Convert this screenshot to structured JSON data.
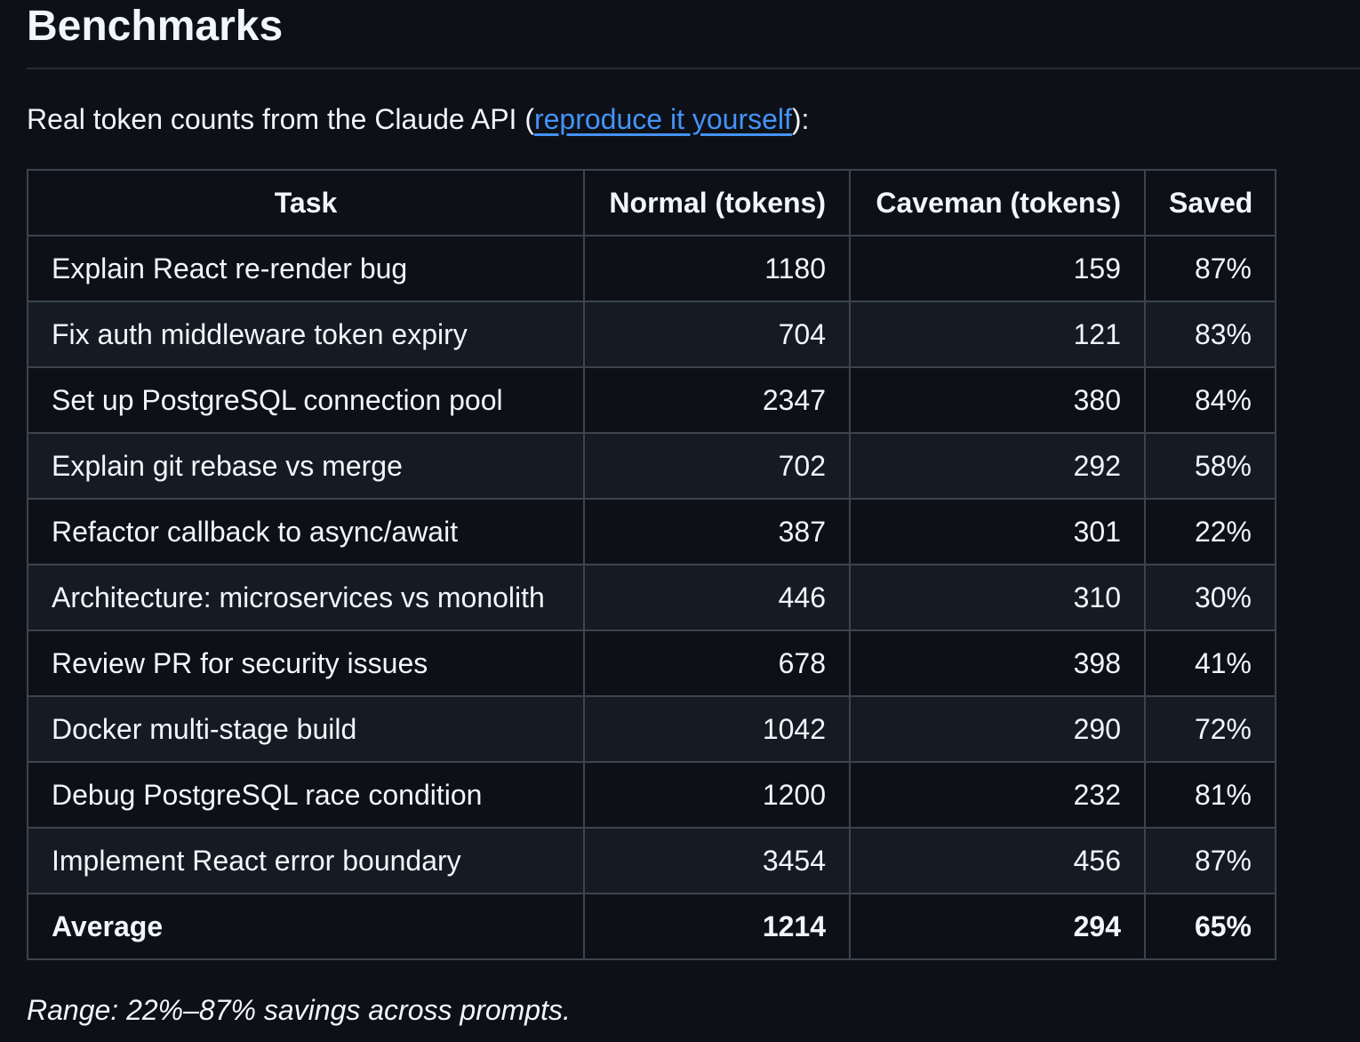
{
  "colors": {
    "background": "#0d1117",
    "text": "#f0f6fc",
    "link": "#4493f8",
    "border": "#3d444d",
    "row_alt": "#151b23",
    "heading_rule": "#262c36"
  },
  "section": {
    "title": "Benchmarks"
  },
  "intro": {
    "prefix": "Real token counts from the Claude API (",
    "link_text": "reproduce it yourself",
    "suffix": "):"
  },
  "table": {
    "headers": [
      "Task",
      "Normal (tokens)",
      "Caveman (tokens)",
      "Saved"
    ],
    "rows": [
      {
        "task": "Explain React re-render bug",
        "normal": "1180",
        "caveman": "159",
        "saved": "87%",
        "bold": false
      },
      {
        "task": "Fix auth middleware token expiry",
        "normal": "704",
        "caveman": "121",
        "saved": "83%",
        "bold": false
      },
      {
        "task": "Set up PostgreSQL connection pool",
        "normal": "2347",
        "caveman": "380",
        "saved": "84%",
        "bold": false
      },
      {
        "task": "Explain git rebase vs merge",
        "normal": "702",
        "caveman": "292",
        "saved": "58%",
        "bold": false
      },
      {
        "task": "Refactor callback to async/await",
        "normal": "387",
        "caveman": "301",
        "saved": "22%",
        "bold": false
      },
      {
        "task": "Architecture: microservices vs monolith",
        "normal": "446",
        "caveman": "310",
        "saved": "30%",
        "bold": false
      },
      {
        "task": "Review PR for security issues",
        "normal": "678",
        "caveman": "398",
        "saved": "41%",
        "bold": false
      },
      {
        "task": "Docker multi-stage build",
        "normal": "1042",
        "caveman": "290",
        "saved": "72%",
        "bold": false
      },
      {
        "task": "Debug PostgreSQL race condition",
        "normal": "1200",
        "caveman": "232",
        "saved": "81%",
        "bold": false
      },
      {
        "task": "Implement React error boundary",
        "normal": "3454",
        "caveman": "456",
        "saved": "87%",
        "bold": false
      },
      {
        "task": "Average",
        "normal": "1214",
        "caveman": "294",
        "saved": "65%",
        "bold": true
      }
    ]
  },
  "footer": {
    "note": "Range: 22%–87% savings across prompts."
  }
}
